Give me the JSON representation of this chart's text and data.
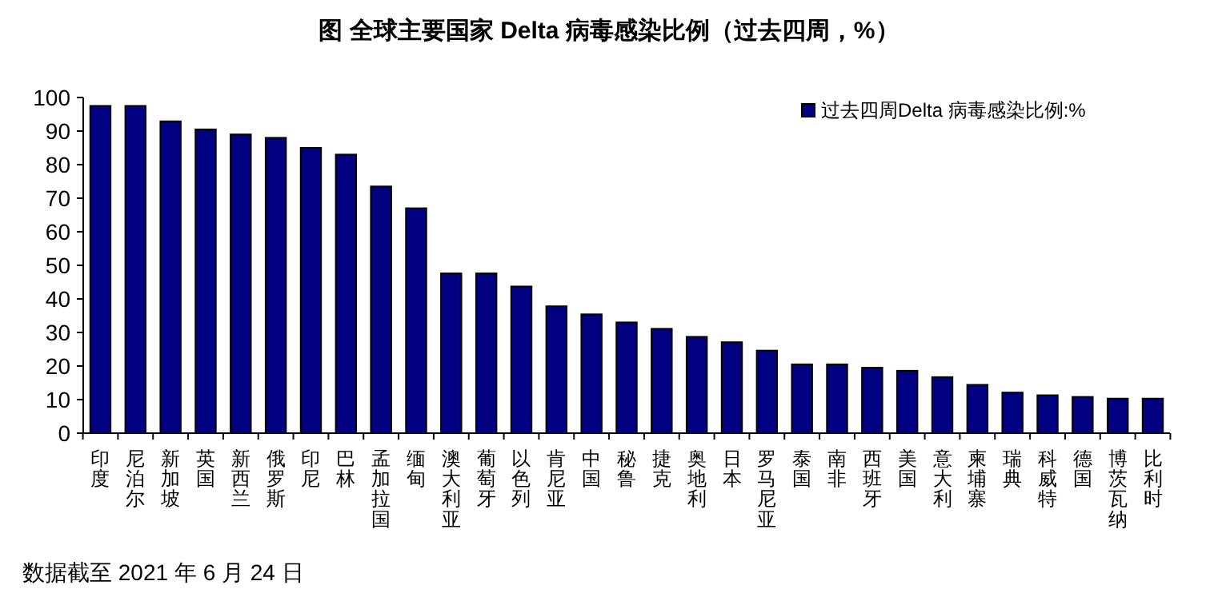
{
  "chart_data": {
    "type": "bar",
    "title": "图  全球主要国家 Delta 病毒感染比例（过去四周，%）",
    "categories": [
      "印度",
      "尼泊尔",
      "新加坡",
      "英国",
      "新西兰",
      "俄罗斯",
      "印尼",
      "巴林",
      "孟加拉国",
      "缅甸",
      "澳大利亚",
      "葡萄牙",
      "以色列",
      "肯尼亚",
      "中国",
      "秘鲁",
      "捷克",
      "奥地利",
      "日本",
      "罗马尼亚",
      "泰国",
      "南非",
      "西班牙",
      "美国",
      "意大利",
      "柬埔寨",
      "瑞典",
      "科威特",
      "德国",
      "博茨瓦纳",
      "比利时"
    ],
    "series": [
      {
        "name": "过去四周Delta 病毒感染比例:%",
        "color": "#000080",
        "values": [
          97.5,
          97.5,
          92.9,
          90.5,
          89,
          88,
          85,
          83,
          73.5,
          67,
          47.6,
          47.6,
          43.7,
          37.8,
          35.4,
          33,
          31.1,
          28.7,
          27.1,
          24.6,
          20.5,
          20.5,
          19.5,
          18.6,
          16.7,
          14.4,
          12.1,
          11.3,
          10.8,
          10.3,
          10.3
        ]
      }
    ],
    "ylim": [
      0,
      100
    ],
    "yticks": [
      0,
      10,
      20,
      30,
      40,
      50,
      60,
      70,
      80,
      90,
      100
    ],
    "grid": false,
    "legend": "top right",
    "annotations": [
      "数据截至 2021 年 6 月 24 日"
    ]
  }
}
